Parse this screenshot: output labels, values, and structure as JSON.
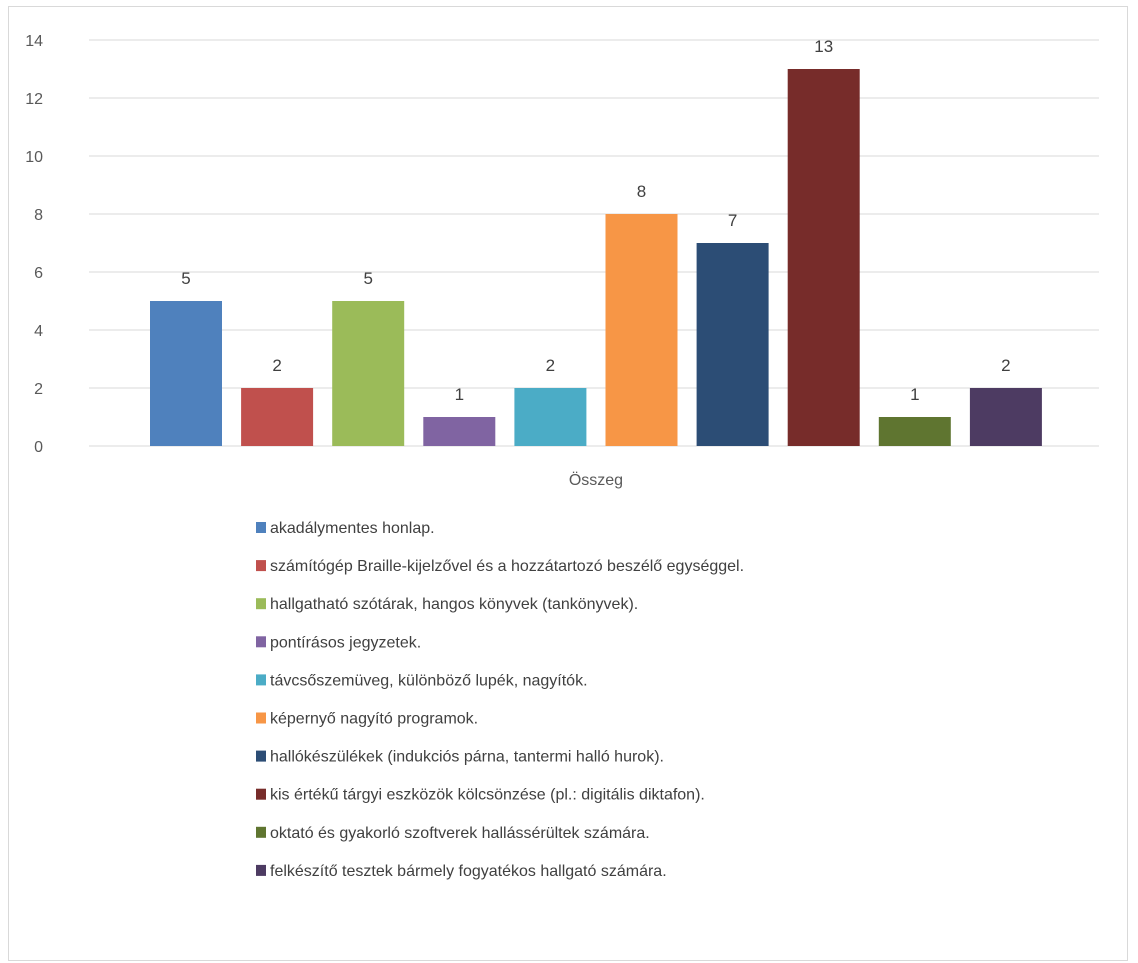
{
  "chart_data": {
    "type": "bar",
    "categories": [
      "Összeg"
    ],
    "xlabel": "",
    "ylabel": "",
    "ylim": [
      0,
      14
    ],
    "yticks": [
      0,
      2,
      4,
      6,
      8,
      10,
      12,
      14
    ],
    "grid": true,
    "legend_position": "bottom",
    "series": [
      {
        "name": "akadálymentes honlap.",
        "values": [
          5
        ],
        "color": "#4f81bd"
      },
      {
        "name": "számítógép Braille-kijelzővel és a hozzátartozó beszélő egységgel.",
        "values": [
          2
        ],
        "color": "#c0504d"
      },
      {
        "name": "hallgatható szótárak, hangos könyvek (tankönyvek).",
        "values": [
          5
        ],
        "color": "#9bbb59"
      },
      {
        "name": "pontírásos jegyzetek.",
        "values": [
          1
        ],
        "color": "#8064a2"
      },
      {
        "name": "távcsőszemüveg, különböző lupék, nagyítók.",
        "values": [
          2
        ],
        "color": "#4bacc6"
      },
      {
        "name": "képernyő nagyító programok.",
        "values": [
          8
        ],
        "color": "#f79646"
      },
      {
        "name": "hallókészülékek (indukciós párna, tantermi halló hurok).",
        "values": [
          7
        ],
        "color": "#2c4d75"
      },
      {
        "name": "kis értékű tárgyi eszközök kölcsönzése (pl.: digitális diktafon).",
        "values": [
          13
        ],
        "color": "#772c2a"
      },
      {
        "name": "oktató és gyakorló szoftverek hallássérültek számára.",
        "values": [
          1
        ],
        "color": "#5f7530"
      },
      {
        "name": "felkészítő tesztek bármely fogyatékos hallgató számára.",
        "values": [
          2
        ],
        "color": "#4d3b62"
      }
    ]
  }
}
